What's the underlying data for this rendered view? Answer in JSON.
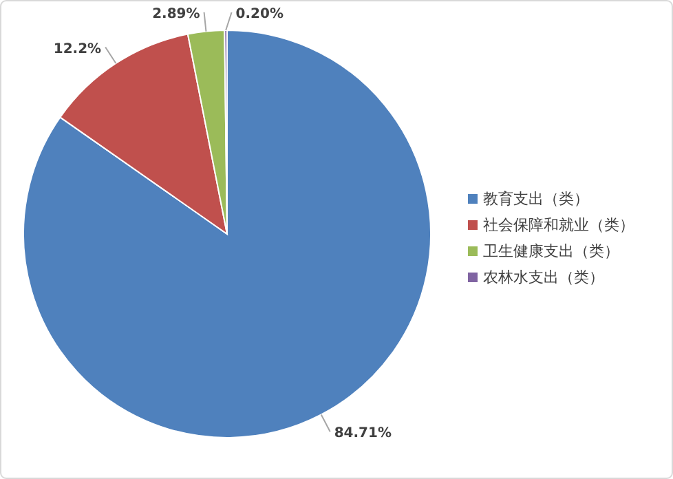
{
  "chart_data": {
    "type": "pie",
    "categories": [
      "教育支出（类）",
      "社会保障和就业（类）",
      "卫生健康支出（类）",
      "农林水支出（类）"
    ],
    "values": [
      84.71,
      12.2,
      2.89,
      0.2
    ],
    "value_labels": [
      "84.71%",
      "12.2%",
      "2.89%",
      "0.20%"
    ],
    "colors": [
      "#4f81bd",
      "#c0504d",
      "#9bbb59",
      "#8064a2"
    ],
    "legend": "right"
  }
}
